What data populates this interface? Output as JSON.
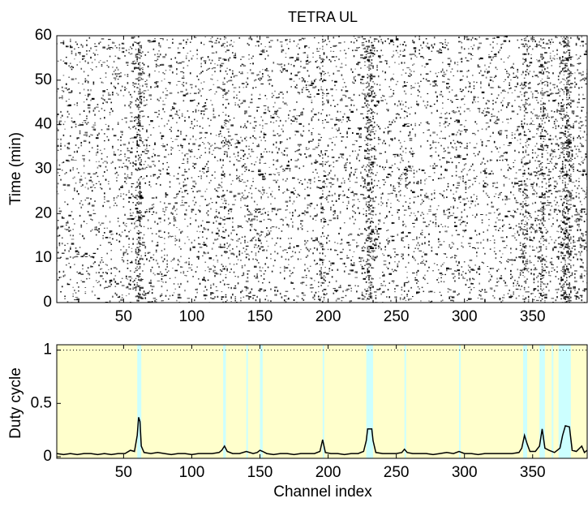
{
  "chart_data": [
    {
      "type": "raster",
      "title": "TETRA UL",
      "ylabel": "Time (min)",
      "xlim": [
        1,
        390
      ],
      "ylim": [
        0,
        60
      ],
      "xticks": [
        50,
        100,
        150,
        200,
        250,
        300,
        350
      ],
      "yticks": [
        0,
        10,
        20,
        30,
        40,
        50,
        60
      ],
      "color": "#000000"
    },
    {
      "type": "line",
      "xlabel": "Channel index",
      "ylabel": "Duty cycle",
      "xlim": [
        1,
        390
      ],
      "ylim": [
        -0.015,
        1.05
      ],
      "xticks": [
        50,
        100,
        150,
        200,
        250,
        300,
        350
      ],
      "yticks": [
        0,
        0.5,
        1
      ],
      "reference_line": 1,
      "background": "#ffffcc",
      "band_color": "#ccffff",
      "color": "#000000",
      "bands": [
        [
          60,
          63
        ],
        [
          123,
          125
        ],
        [
          140,
          141
        ],
        [
          150,
          152
        ],
        [
          196,
          197
        ],
        [
          228,
          233
        ],
        [
          256,
          257
        ],
        [
          296,
          297
        ],
        [
          343,
          346
        ],
        [
          355,
          359
        ],
        [
          364,
          365
        ],
        [
          369,
          378
        ]
      ],
      "x": [
        1,
        6,
        11,
        16,
        21,
        26,
        31,
        36,
        41,
        46,
        51,
        55,
        58,
        60,
        61,
        62,
        63,
        65,
        70,
        75,
        80,
        85,
        90,
        95,
        100,
        105,
        110,
        115,
        120,
        122,
        124,
        126,
        130,
        135,
        140,
        145,
        148,
        150,
        152,
        155,
        160,
        165,
        170,
        175,
        180,
        185,
        190,
        194,
        196,
        198,
        202,
        207,
        212,
        217,
        222,
        226,
        228,
        229,
        232,
        233,
        235,
        240,
        245,
        250,
        254,
        256,
        258,
        262,
        267,
        272,
        277,
        282,
        287,
        292,
        296,
        300,
        305,
        310,
        315,
        320,
        325,
        330,
        335,
        340,
        342,
        344,
        346,
        348,
        352,
        355,
        357,
        359,
        362,
        366,
        370,
        372,
        374,
        377,
        379,
        382,
        386,
        388,
        390
      ],
      "values": [
        0.03,
        0.02,
        0.03,
        0.02,
        0.03,
        0.03,
        0.02,
        0.03,
        0.02,
        0.03,
        0.03,
        0.06,
        0.05,
        0.2,
        0.37,
        0.33,
        0.1,
        0.04,
        0.03,
        0.04,
        0.03,
        0.02,
        0.03,
        0.03,
        0.02,
        0.03,
        0.03,
        0.03,
        0.04,
        0.06,
        0.1,
        0.05,
        0.03,
        0.03,
        0.05,
        0.03,
        0.04,
        0.06,
        0.05,
        0.03,
        0.02,
        0.03,
        0.03,
        0.02,
        0.03,
        0.03,
        0.03,
        0.05,
        0.16,
        0.04,
        0.03,
        0.03,
        0.02,
        0.03,
        0.03,
        0.05,
        0.15,
        0.26,
        0.26,
        0.15,
        0.04,
        0.03,
        0.03,
        0.03,
        0.04,
        0.07,
        0.04,
        0.03,
        0.03,
        0.03,
        0.02,
        0.03,
        0.04,
        0.03,
        0.05,
        0.03,
        0.03,
        0.02,
        0.03,
        0.03,
        0.03,
        0.03,
        0.03,
        0.04,
        0.08,
        0.2,
        0.12,
        0.05,
        0.05,
        0.1,
        0.26,
        0.08,
        0.06,
        0.04,
        0.08,
        0.2,
        0.29,
        0.28,
        0.06,
        0.05,
        0.1,
        0.04,
        0.06
      ]
    }
  ]
}
